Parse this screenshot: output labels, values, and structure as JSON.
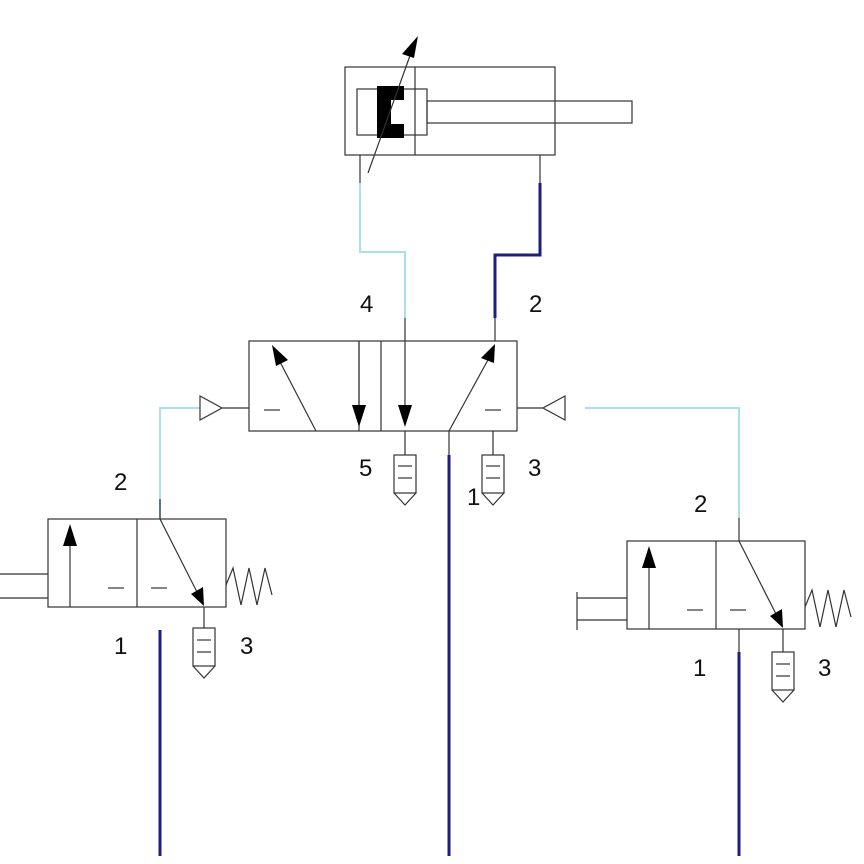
{
  "colors": {
    "pressure_line": "#1c1f80",
    "signal_line": "#a6e1ec",
    "symbol": "#333333",
    "background": "#ffffff"
  },
  "labels": {
    "main_valve_port_4": "4",
    "main_valve_port_2": "2",
    "main_valve_port_5": "5",
    "main_valve_port_1": "1",
    "main_valve_port_3": "3",
    "left_valve_port_2": "2",
    "left_valve_port_1": "1",
    "left_valve_port_3": "3",
    "right_valve_port_2": "2",
    "right_valve_port_1": "1",
    "right_valve_port_3": "3"
  }
}
